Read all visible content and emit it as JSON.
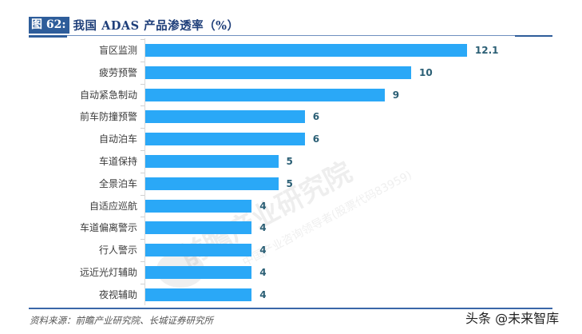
{
  "header": {
    "figure_label": "图 62:",
    "figure_title": "我国 ADAS 产品渗透率（%）"
  },
  "footer": {
    "source": "资料来源：前瞻产业研究院、长城证券研究所",
    "credit": "头条 @未来智库"
  },
  "watermark": {
    "main": "前瞻产业研究院",
    "sub": "中国产业咨询领导者(股票代码83959)"
  },
  "colors": {
    "bar": "#2aa8f7",
    "value_label": "#2b5f75",
    "title_label_bg": "#2e5d9a",
    "title_text": "#1f3f7a"
  },
  "chart_data": {
    "type": "bar",
    "orientation": "horizontal",
    "title": "我国 ADAS 产品渗透率（%）",
    "xlabel": "",
    "ylabel": "",
    "categories": [
      "盲区监测",
      "疲劳预警",
      "自动紧急制动",
      "前车防撞预警",
      "自动泊车",
      "车道保持",
      "全景泊车",
      "自适应巡航",
      "车道偏离警示",
      "行人警示",
      "远近光灯辅助",
      "夜视辅助"
    ],
    "values": [
      12.1,
      10,
      9,
      6,
      6,
      5,
      5,
      4,
      4,
      4,
      4,
      4
    ],
    "value_labels": [
      "12.1",
      "10",
      "9",
      "6",
      "6",
      "5",
      "5",
      "4",
      "4",
      "4",
      "4",
      "4"
    ],
    "xlim": [
      0,
      13
    ],
    "grid": false,
    "legend": null,
    "data_labels": true
  }
}
